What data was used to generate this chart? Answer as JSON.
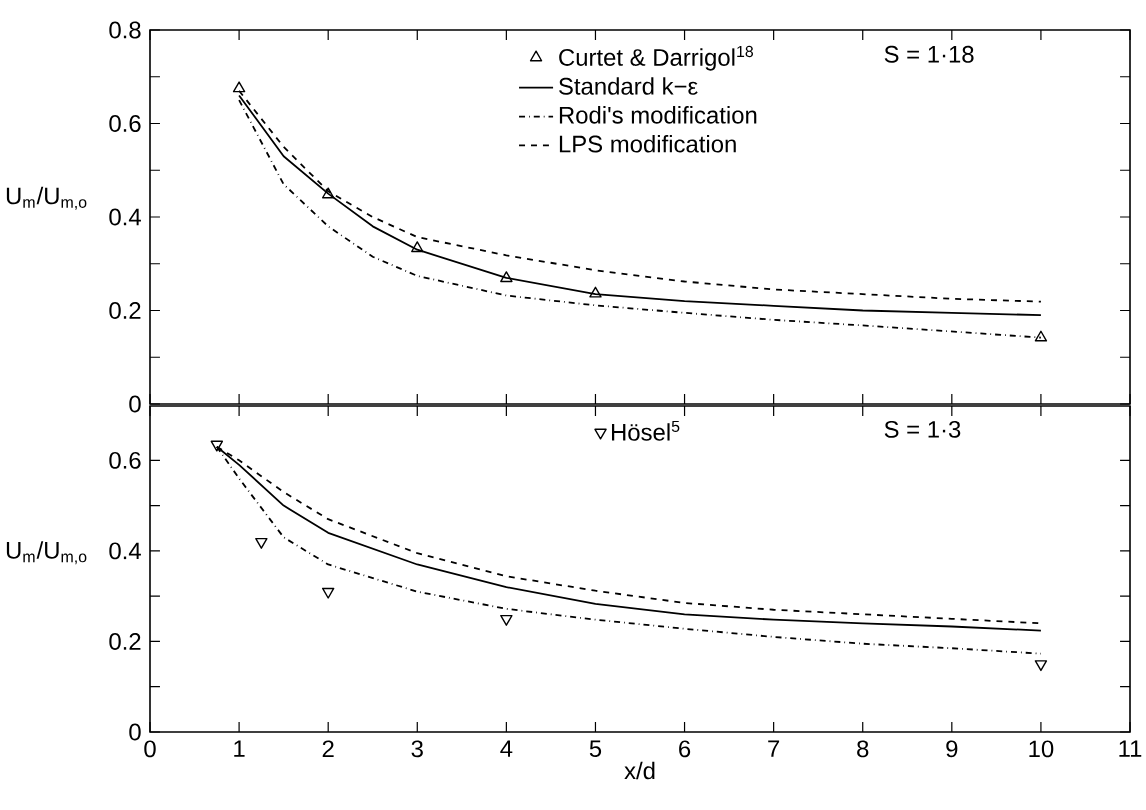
{
  "chart_data": [
    {
      "type": "line",
      "ylabel": "U$_{m}$/U$_{m,o}$",
      "xlim": [
        0,
        11
      ],
      "xticks": [
        0,
        1,
        2,
        3,
        4,
        5,
        6,
        7,
        8,
        9,
        10,
        11
      ],
      "ylim": [
        0,
        0.8
      ],
      "yticks": [
        0,
        {
          "value": 0.1,
          "label": null
        },
        0.2,
        {
          "value": 0.3,
          "label": null
        },
        0.4,
        {
          "value": 0.5,
          "label": null
        },
        0.6,
        {
          "value": 0.7,
          "label": null
        },
        0.8
      ],
      "tick_labels": "y",
      "legend": "top",
      "annotations": [
        "S = 1·18"
      ],
      "series": [
        {
          "name": "Curtet & Darrigol$^{18}$",
          "type": "scatter",
          "marker": "triangle",
          "color": "#000000",
          "x": [
            1,
            2,
            3,
            4,
            5,
            10
          ],
          "values": [
            0.675,
            0.448,
            0.333,
            0.269,
            0.236,
            0.142
          ]
        },
        {
          "name": "Standard k−ε",
          "type": "line",
          "line_style": "solid",
          "color": "#000000",
          "x": [
            1,
            1.5,
            2,
            2.5,
            3,
            4,
            5,
            6,
            7,
            8,
            9,
            10
          ],
          "values": [
            0.66,
            0.53,
            0.45,
            0.38,
            0.33,
            0.27,
            0.235,
            0.22,
            0.21,
            0.2,
            0.195,
            0.19
          ]
        },
        {
          "name": "Rodi's modification",
          "type": "line",
          "line_style": "dashdot",
          "color": "#000000",
          "x": [
            1,
            1.5,
            2,
            2.5,
            3,
            4,
            5,
            6,
            7,
            8,
            9,
            10
          ],
          "values": [
            0.65,
            0.47,
            0.38,
            0.315,
            0.274,
            0.232,
            0.211,
            0.195,
            0.18,
            0.168,
            0.155,
            0.142
          ]
        },
        {
          "name": "LPS modification",
          "type": "line",
          "line_style": "dashed",
          "color": "#000000",
          "x": [
            1,
            1.5,
            2,
            2.5,
            3,
            4,
            5,
            6,
            7,
            8,
            9,
            10
          ],
          "values": [
            0.67,
            0.55,
            0.455,
            0.4,
            0.357,
            0.318,
            0.286,
            0.262,
            0.245,
            0.235,
            0.225,
            0.219
          ]
        }
      ]
    },
    {
      "type": "line",
      "ylabel": "U$_{m}$/U$_{m,o}$",
      "xlabel": "x/d",
      "xlim": [
        0,
        11
      ],
      "xticks": [
        0,
        1,
        2,
        3,
        4,
        5,
        6,
        7,
        8,
        9,
        10,
        11
      ],
      "ylim": [
        0,
        0.72
      ],
      "yticks": [
        0,
        {
          "value": 0.1,
          "label": null
        },
        0.2,
        {
          "value": 0.3,
          "label": null
        },
        0.4,
        {
          "value": 0.5,
          "label": null
        },
        0.6
      ],
      "legend": "top",
      "annotations": [
        "S = 1·3"
      ],
      "series": [
        {
          "name": "Hösel$^{5}$",
          "type": "scatter",
          "marker": "triangle-down",
          "color": "#000000",
          "x": [
            0.75,
            1.25,
            2,
            4,
            10
          ],
          "values": [
            0.635,
            0.42,
            0.31,
            0.25,
            0.15
          ]
        },
        {
          "type": "line",
          "line_style": "solid",
          "color": "#000000",
          "x": [
            0.75,
            1,
            1.5,
            2,
            3,
            4,
            5,
            6,
            7,
            8,
            9,
            10
          ],
          "values": [
            0.63,
            0.59,
            0.5,
            0.44,
            0.37,
            0.32,
            0.283,
            0.26,
            0.248,
            0.24,
            0.233,
            0.224
          ]
        },
        {
          "type": "line",
          "line_style": "dashdot",
          "color": "#000000",
          "x": [
            0.75,
            1,
            1.5,
            2,
            3,
            4,
            5,
            6,
            7,
            8,
            9,
            10
          ],
          "values": [
            0.63,
            0.56,
            0.43,
            0.37,
            0.31,
            0.272,
            0.248,
            0.228,
            0.21,
            0.195,
            0.185,
            0.173
          ]
        },
        {
          "type": "line",
          "line_style": "dashed",
          "color": "#000000",
          "x": [
            0.75,
            1,
            1.5,
            2,
            3,
            4,
            5,
            6,
            7,
            8,
            9,
            10
          ],
          "values": [
            0.63,
            0.6,
            0.53,
            0.47,
            0.395,
            0.344,
            0.312,
            0.285,
            0.27,
            0.26,
            0.25,
            0.24
          ]
        }
      ]
    }
  ]
}
